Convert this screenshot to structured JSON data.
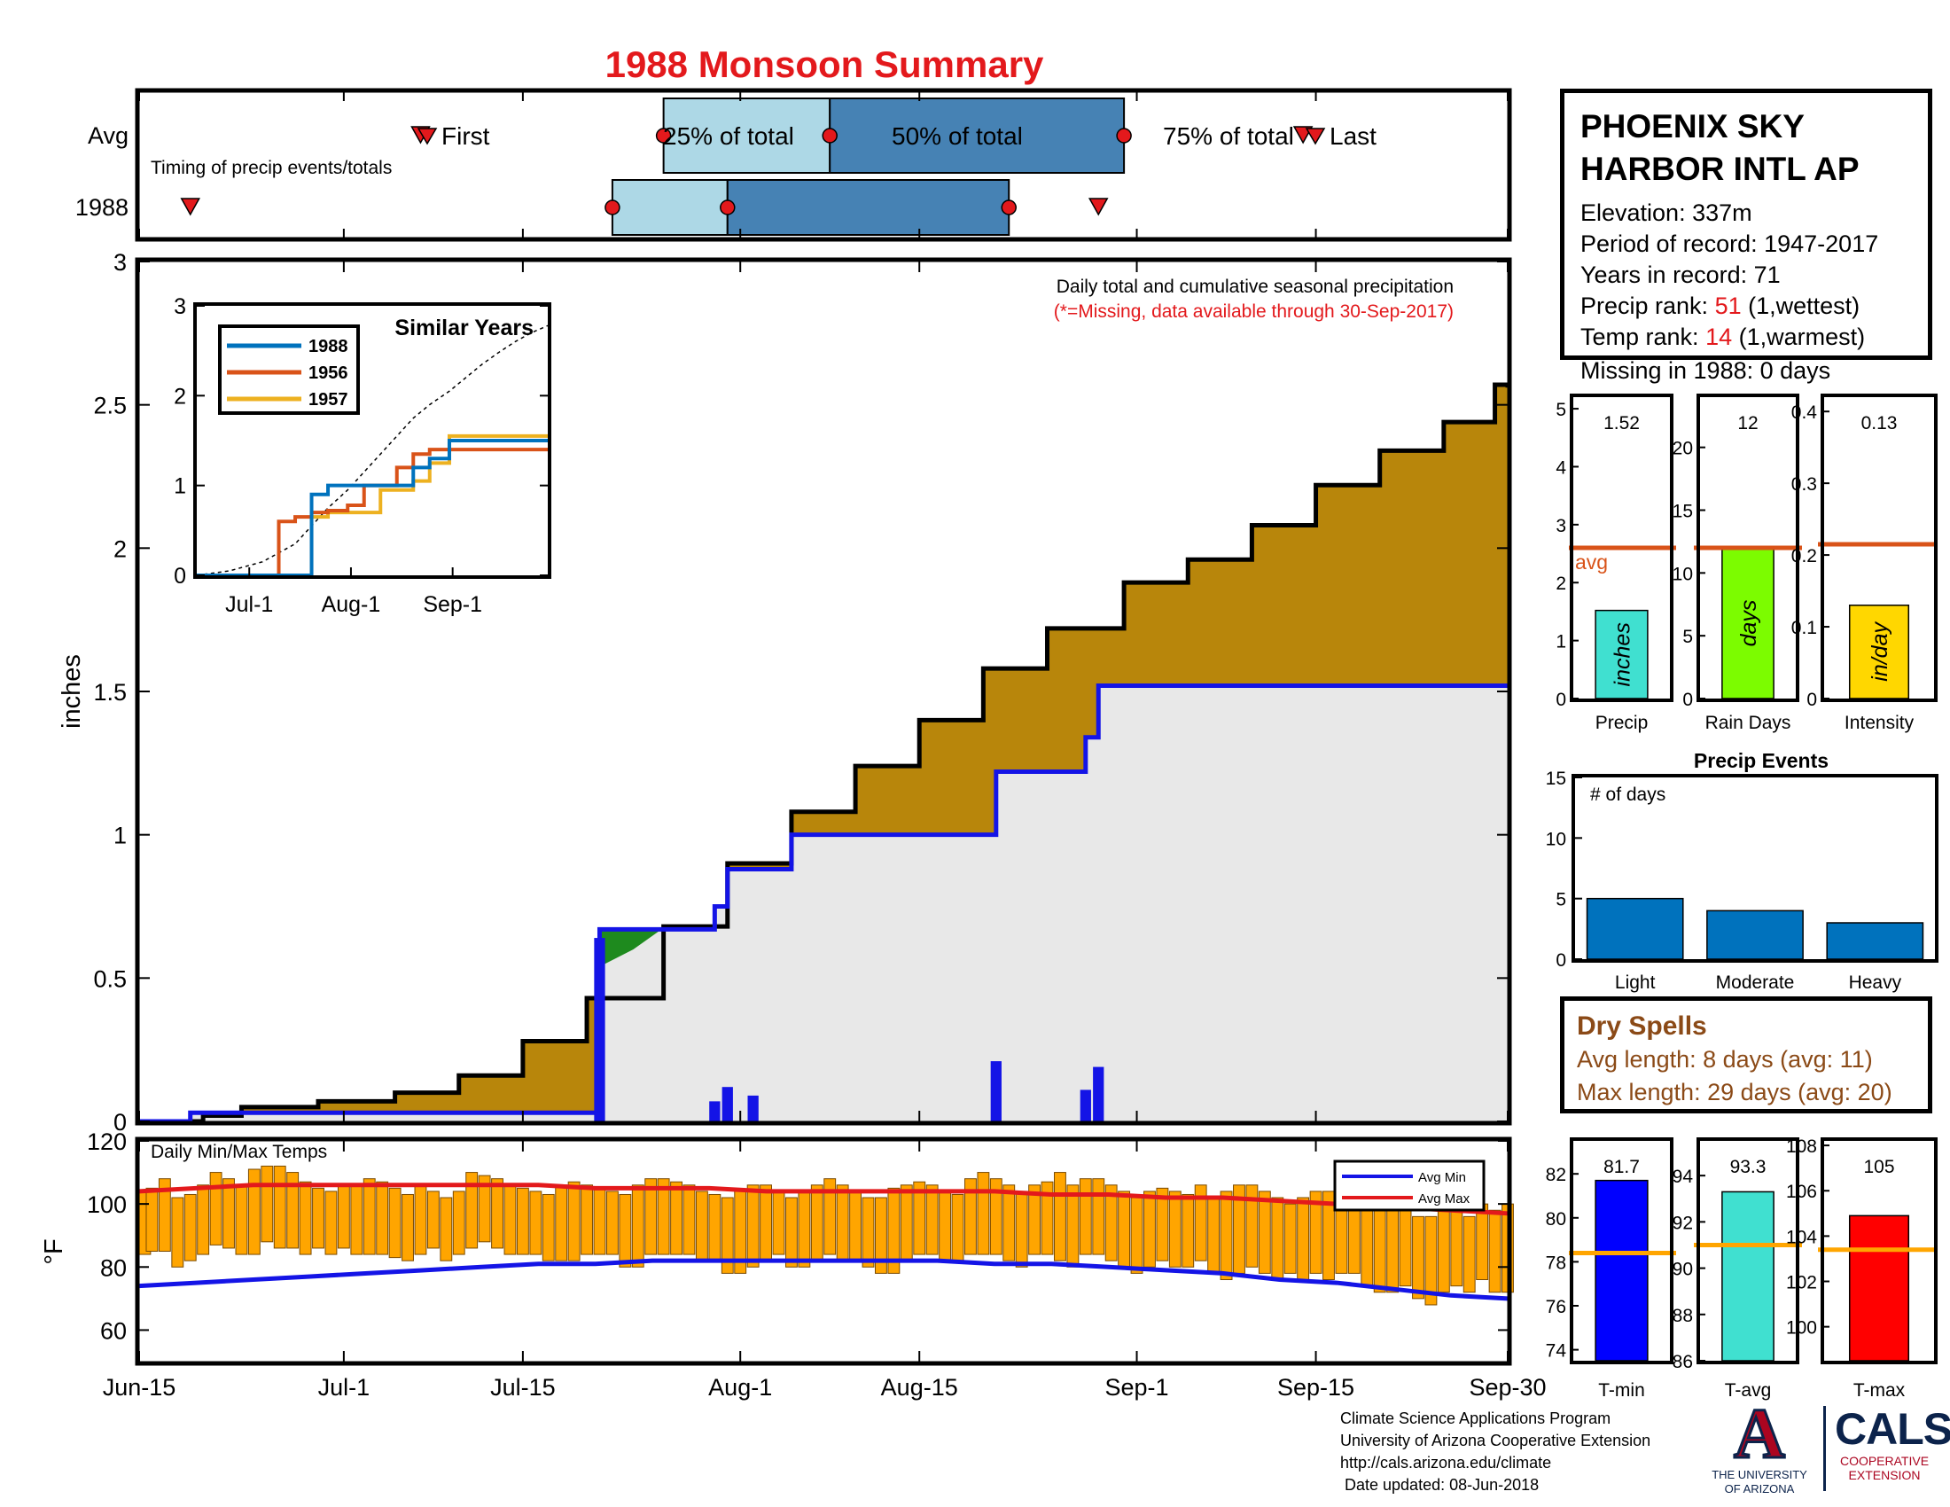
{
  "title": "1988 Monsoon Summary",
  "colors": {
    "title_red": "#e3191c",
    "cumulative_fill": "#b8860b",
    "avg_fill": "#e8e8e8",
    "blue_line": "#1414e6",
    "green_patch": "#1e8a1e",
    "light_blue": "#add8e6",
    "steel_blue": "#4682b4",
    "precip_bar": "#40e0d0",
    "rain_days_bar": "#7cfc00",
    "intensity_bar": "#ffd700",
    "avg_line_orange": "#d95319",
    "temp_bar": "#ffa500",
    "event_bar": "#0072bd",
    "tmin_bar": "#0000ff",
    "tavg_bar": "#40e0d0",
    "tmax_bar": "#ff0000",
    "temp_avg_line": "#ffa500"
  },
  "timing": {
    "caption": "Timing of precip events/totals",
    "row_labels": [
      "Avg",
      "1988"
    ],
    "legend_first": "First",
    "legend_last": "Last",
    "label_25": "25% of total",
    "label_50": "50% of total",
    "label_75": "75% of total",
    "avg": {
      "first": "2017-07-07",
      "p25": "2017-07-26",
      "p50": "2017-08-08",
      "p75": "2017-08-31",
      "last": "2017-09-14"
    },
    "year": {
      "first": "2017-06-19",
      "p25": "2017-07-22",
      "p50": "2017-07-31",
      "p75": "2017-08-22",
      "last": "2017-08-29"
    }
  },
  "main_chart": {
    "annotation": "Daily total and cumulative seasonal precipitation",
    "missing_note": "(*=Missing, data available through 30-Sep-2017)",
    "ylabel": "inches",
    "ylim": [
      0,
      3
    ],
    "yticks": [
      "0",
      "0.5",
      "1",
      "1.5",
      "2",
      "2.5",
      "3"
    ],
    "xticks": [
      "Jun-15",
      "Jul-1",
      "Jul-15",
      "Aug-1",
      "Aug-15",
      "Sep-1",
      "Sep-15",
      "Sep-30"
    ],
    "xtick_dates": [
      "2017-06-15",
      "2017-07-01",
      "2017-07-15",
      "2017-08-01",
      "2017-08-15",
      "2017-09-01",
      "2017-09-15",
      "2017-09-30"
    ],
    "xrange": [
      "2017-06-15",
      "2017-09-30"
    ]
  },
  "chart_data": [
    {
      "type": "area",
      "name_key": "cumulative_average_precip",
      "x": [
        "2017-06-15",
        "2017-06-20",
        "2017-06-23",
        "2017-06-29",
        "2017-07-05",
        "2017-07-10",
        "2017-07-15",
        "2017-07-20",
        "2017-07-26",
        "2017-07-31",
        "2017-08-05",
        "2017-08-10",
        "2017-08-15",
        "2017-08-20",
        "2017-08-25",
        "2017-08-31",
        "2017-09-05",
        "2017-09-10",
        "2017-09-15",
        "2017-09-20",
        "2017-09-25",
        "2017-09-29",
        "2017-09-30"
      ],
      "values": [
        0.0,
        0.02,
        0.05,
        0.07,
        0.1,
        0.16,
        0.28,
        0.43,
        0.68,
        0.9,
        1.08,
        1.24,
        1.4,
        1.58,
        1.72,
        1.88,
        1.96,
        2.08,
        2.22,
        2.34,
        2.44,
        2.57,
        2.56
      ]
    },
    {
      "type": "line",
      "name_key": "cumulative_1988_precip",
      "x": [
        "2017-06-15",
        "2017-06-19",
        "2017-07-20",
        "2017-07-21",
        "2017-07-30",
        "2017-07-31",
        "2017-08-05",
        "2017-08-20",
        "2017-08-21",
        "2017-08-27",
        "2017-08-28",
        "2017-08-29",
        "2017-09-30"
      ],
      "values": [
        0.0,
        0.03,
        0.03,
        0.67,
        0.75,
        0.88,
        1.0,
        1.0,
        1.22,
        1.22,
        1.34,
        1.52,
        1.52
      ]
    },
    {
      "type": "bar",
      "name_key": "daily_1988_precip",
      "x": [
        "2017-07-21",
        "2017-07-30",
        "2017-07-31",
        "2017-08-02",
        "2017-08-21",
        "2017-08-28",
        "2017-08-29"
      ],
      "values": [
        0.64,
        0.07,
        0.12,
        0.09,
        0.21,
        0.11,
        0.19
      ]
    },
    {
      "type": "line",
      "title": "Similar Years",
      "x": [
        "2017-06-15",
        "2017-06-25",
        "2017-07-05",
        "2017-07-10",
        "2017-07-15",
        "2017-07-20",
        "2017-07-25",
        "2017-07-31",
        "2017-08-05",
        "2017-08-10",
        "2017-08-15",
        "2017-08-20",
        "2017-08-25",
        "2017-08-31",
        "2017-09-05",
        "2017-09-10",
        "2017-09-15",
        "2017-09-20",
        "2017-09-25",
        "2017-09-30"
      ],
      "xticks": [
        "Jul-1",
        "Aug-1",
        "Sep-1"
      ],
      "xtick_dates": [
        "2017-07-01",
        "2017-08-01",
        "2017-09-01"
      ],
      "ylim": [
        0,
        3
      ],
      "yticks": [
        "0",
        "1",
        "2",
        "3"
      ],
      "series": [
        {
          "name": "1988",
          "color": "#0072bd",
          "values": [
            0,
            0,
            0,
            0,
            0,
            0.9,
            1.0,
            1.0,
            1.0,
            1.0,
            1.0,
            1.2,
            1.3,
            1.5,
            1.5,
            1.5,
            1.5,
            1.5,
            1.5,
            1.5
          ]
        },
        {
          "name": "1956",
          "color": "#d95319",
          "values": [
            0,
            0,
            0,
            0.6,
            0.65,
            0.7,
            0.72,
            0.78,
            1.0,
            1.0,
            1.2,
            1.35,
            1.4,
            1.4,
            1.4,
            1.4,
            1.4,
            1.4,
            1.4,
            1.4
          ]
        },
        {
          "name": "1957",
          "color": "#edb120",
          "values": [
            0,
            0,
            0,
            0,
            0,
            0.65,
            0.7,
            0.7,
            0.7,
            0.95,
            0.95,
            1.05,
            1.25,
            1.55,
            1.55,
            1.55,
            1.55,
            1.55,
            1.55,
            1.55
          ]
        }
      ],
      "average_dashed": [
        0.0,
        0.05,
        0.15,
        0.25,
        0.35,
        0.55,
        0.75,
        0.95,
        1.15,
        1.35,
        1.55,
        1.75,
        1.9,
        2.05,
        2.2,
        2.35,
        2.48,
        2.6,
        2.7,
        2.78
      ]
    },
    {
      "type": "bar",
      "title": "Daily Min/Max Temps",
      "ylim": [
        50,
        120
      ],
      "yticks": [
        "60",
        "80",
        "100",
        "120"
      ],
      "ylabel": "°F",
      "legend": [
        "Avg Min",
        "Avg Max"
      ],
      "legend_placement": "top-right",
      "start_date": "2017-06-15",
      "tmax": [
        104,
        105,
        108,
        102,
        103,
        106,
        110,
        108,
        106,
        111,
        112,
        112,
        110,
        107,
        105,
        104,
        106,
        106,
        108,
        107,
        105,
        103,
        106,
        104,
        102,
        104,
        110,
        109,
        108,
        106,
        105,
        104,
        103,
        106,
        107,
        106,
        105,
        104,
        103,
        106,
        108,
        108,
        107,
        106,
        104,
        103,
        102,
        104,
        106,
        106,
        104,
        102,
        104,
        106,
        108,
        106,
        104,
        102,
        102,
        105,
        106,
        107,
        106,
        104,
        103,
        108,
        110,
        108,
        106,
        104,
        106,
        107,
        110,
        106,
        108,
        108,
        106,
        104,
        102,
        104,
        105,
        104,
        103,
        106,
        102,
        104,
        106,
        106,
        104,
        102,
        100,
        102,
        104,
        104,
        106,
        104,
        102,
        104,
        100,
        98,
        96,
        96,
        98,
        100,
        96,
        100,
        98,
        100
      ],
      "tmin": [
        84,
        85,
        85,
        80,
        82,
        84,
        87,
        86,
        84,
        84,
        88,
        86,
        86,
        84,
        86,
        84,
        86,
        84,
        84,
        84,
        83,
        82,
        84,
        86,
        82,
        84,
        86,
        88,
        86,
        84,
        84,
        84,
        82,
        82,
        82,
        84,
        84,
        84,
        80,
        80,
        84,
        84,
        84,
        84,
        82,
        82,
        78,
        78,
        80,
        82,
        84,
        80,
        80,
        82,
        84,
        82,
        82,
        80,
        78,
        78,
        82,
        84,
        84,
        82,
        82,
        84,
        84,
        84,
        82,
        80,
        84,
        84,
        82,
        80,
        84,
        84,
        82,
        80,
        78,
        80,
        82,
        80,
        80,
        82,
        78,
        76,
        78,
        80,
        78,
        76,
        78,
        76,
        78,
        76,
        78,
        78,
        74,
        72,
        72,
        74,
        70,
        68,
        72,
        74,
        72,
        76,
        72,
        72
      ],
      "avg_min": [
        74,
        75,
        76,
        77,
        78,
        79,
        80,
        81,
        81,
        82,
        82,
        82,
        82,
        82,
        82,
        81,
        81,
        80,
        79,
        78,
        76,
        75,
        73,
        71,
        70
      ],
      "avg_max": [
        104,
        105,
        106,
        106,
        106,
        106,
        106,
        106,
        105,
        105,
        105,
        104,
        104,
        104,
        104,
        104,
        103,
        103,
        102,
        102,
        101,
        100,
        99,
        98,
        97
      ]
    },
    {
      "type": "bar",
      "title": "Precip Events",
      "annotation": "# of days",
      "categories": [
        "Light",
        "Moderate",
        "Heavy"
      ],
      "values": [
        5,
        4,
        3
      ],
      "ylim": [
        0,
        15
      ],
      "yticks": [
        "0",
        "5",
        "10",
        "15"
      ]
    },
    {
      "type": "bar",
      "categories": [
        "Precip"
      ],
      "values": [
        1.52
      ],
      "value_label": "1.52",
      "unit_label": "inches",
      "average": 2.6,
      "avg_label": "avg",
      "ylim": [
        0,
        5.2
      ],
      "yticks": [
        "0",
        "1",
        "2",
        "3",
        "4",
        "5"
      ]
    },
    {
      "type": "bar",
      "categories": [
        "Rain Days"
      ],
      "values": [
        12
      ],
      "value_label": "12",
      "unit_label": "days",
      "average": 12,
      "ylim": [
        0,
        24
      ],
      "yticks": [
        "0",
        "5",
        "10",
        "15",
        "20"
      ]
    },
    {
      "type": "bar",
      "categories": [
        "Intensity"
      ],
      "values": [
        0.13
      ],
      "value_label": "0.13",
      "unit_label": "in/day",
      "average": 0.215,
      "ylim": [
        0,
        0.42
      ],
      "yticks": [
        "0",
        "0.1",
        "0.2",
        "0.3",
        "0.4"
      ]
    },
    {
      "type": "bar",
      "categories": [
        "T-min"
      ],
      "values": [
        81.7
      ],
      "value_label": "81.7",
      "average": 78.4,
      "ylim": [
        73.5,
        83.5
      ],
      "yticks": [
        "74",
        "76",
        "78",
        "80",
        "82"
      ]
    },
    {
      "type": "bar",
      "categories": [
        "T-avg"
      ],
      "values": [
        93.3
      ],
      "value_label": "93.3",
      "average": 91.0,
      "ylim": [
        86,
        95.5
      ],
      "yticks": [
        "86",
        "88",
        "90",
        "92",
        "94"
      ]
    },
    {
      "type": "bar",
      "categories": [
        "T-max"
      ],
      "values": [
        104.9
      ],
      "value_label": "105",
      "average": 103.4,
      "ylim": [
        98.5,
        108.2
      ],
      "yticks": [
        "100",
        "102",
        "104",
        "106",
        "108"
      ]
    }
  ],
  "station": {
    "name_line1": "PHOENIX SKY",
    "name_line2": "HARBOR INTL AP",
    "elevation": "Elevation: 337m",
    "period": "Period of record: 1947-2017",
    "years": "Years in record: 71",
    "precip_rank_label": "Precip rank: ",
    "precip_rank_value": "51",
    "precip_rank_note": " (1,wettest)",
    "temp_rank_label": "Temp rank: ",
    "temp_rank_value": "14",
    "temp_rank_note": " (1,warmest)",
    "missing": "Missing in 1988: 0 days"
  },
  "dry_spells": {
    "title": "Dry Spells",
    "avg_length": "Avg length: 8 days (avg: 11)",
    "max_length": "Max length: 29 days (avg: 20)"
  },
  "credits": {
    "line1": "Climate Science Applications Program",
    "line2": "University of Arizona Cooperative Extension",
    "line3": "http://cals.arizona.edu/climate",
    "line4": " Date updated: 08-Jun-2018"
  },
  "logos": {
    "ua_letter": "A",
    "ua_line1": "THE UNIVERSITY",
    "ua_line2": "OF ARIZONA",
    "cals_word": "CALS",
    "cals_line1": "COOPERATIVE",
    "cals_line2": "EXTENSION"
  }
}
